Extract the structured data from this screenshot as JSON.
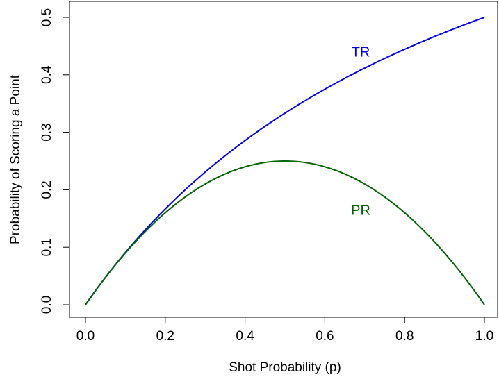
{
  "chart_data": {
    "type": "line",
    "title": "",
    "xlabel": "Shot Probability (p)",
    "ylabel": "Probability of Scoring a Point",
    "xlim": [
      0,
      1
    ],
    "ylim": [
      0,
      0.5
    ],
    "xticks": [
      "0.0",
      "0.2",
      "0.4",
      "0.6",
      "0.8",
      "1.0"
    ],
    "yticks": [
      "0.0",
      "0.1",
      "0.2",
      "0.3",
      "0.4",
      "0.5"
    ],
    "grid": false,
    "legend": "none",
    "x": [
      0.0,
      0.1,
      0.2,
      0.3,
      0.4,
      0.5,
      0.6,
      0.7,
      0.8,
      0.9,
      1.0
    ],
    "series": [
      {
        "name": "TR",
        "color": "#0000ee",
        "values": [
          0.0,
          0.0909,
          0.1667,
          0.2308,
          0.2857,
          0.3333,
          0.375,
          0.4118,
          0.4444,
          0.4737,
          0.5
        ]
      },
      {
        "name": "PR",
        "color": "#006400",
        "values": [
          0.0,
          0.09,
          0.16,
          0.21,
          0.24,
          0.25,
          0.24,
          0.21,
          0.16,
          0.09,
          0.0
        ]
      }
    ]
  }
}
